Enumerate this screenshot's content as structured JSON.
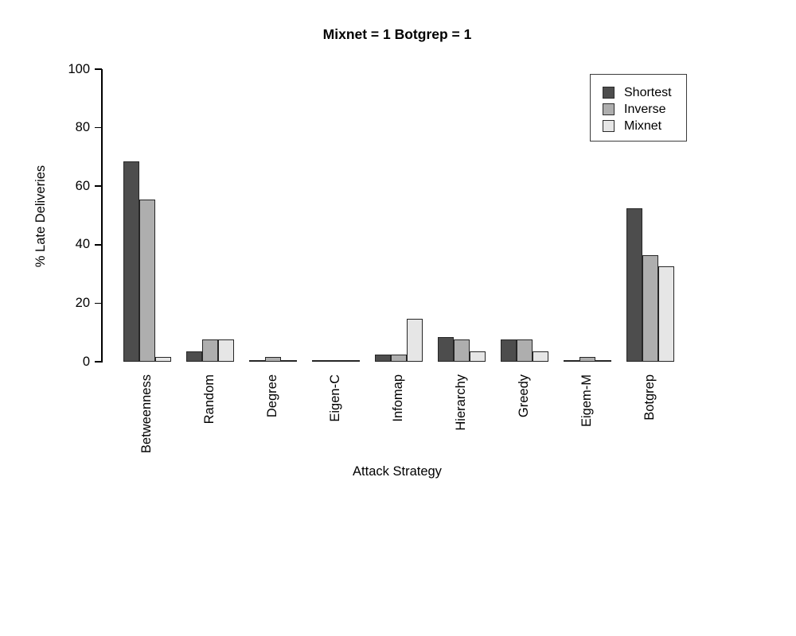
{
  "chart_data": {
    "type": "bar",
    "title": "Mixnet = 1 Botgrep = 1",
    "xlabel": "Attack Strategy",
    "ylabel": "% Late Deliveries",
    "ylim": [
      0,
      100
    ],
    "yticks": [
      0,
      20,
      40,
      60,
      80,
      100
    ],
    "categories": [
      "Betweenness",
      "Random",
      "Degree",
      "Eigen-C",
      "Infomap",
      "Hierarchy",
      "Greedy",
      "Eigem-M",
      "Botgrep"
    ],
    "series": [
      {
        "name": "Shortest",
        "color": "#4D4D4D",
        "values": [
          68,
          3,
          0,
          0,
          2,
          8,
          7,
          0,
          52
        ]
      },
      {
        "name": "Inverse",
        "color": "#AEAEAE",
        "values": [
          55,
          7,
          1,
          0,
          2,
          7,
          7,
          1,
          36
        ]
      },
      {
        "name": "Mixnet",
        "color": "#E6E6E6",
        "values": [
          1,
          7,
          0,
          0,
          14,
          3,
          3,
          0,
          32
        ]
      }
    ],
    "legend_position": "top-right",
    "grid": false,
    "bar_border_color": "#262626",
    "axis_color": "#000000"
  }
}
